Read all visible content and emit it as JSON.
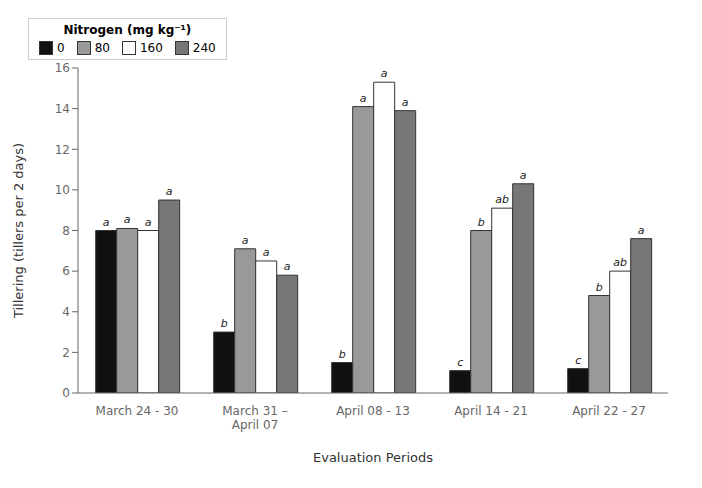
{
  "chart_data": {
    "type": "bar",
    "categories": [
      "March 24 - 30",
      "March 31 –\nApril 07",
      "April 08 - 13",
      "April 14 - 21",
      "April 22 - 27"
    ],
    "series": [
      {
        "name": "0",
        "color": "#111111",
        "values": [
          8.0,
          3.0,
          1.5,
          1.1,
          1.2
        ],
        "labels": [
          "a",
          "b",
          "b",
          "c",
          "c"
        ]
      },
      {
        "name": "80",
        "color": "#999999",
        "values": [
          8.1,
          7.1,
          14.1,
          8.0,
          4.8
        ],
        "labels": [
          "a",
          "a",
          "a",
          "b",
          "b"
        ]
      },
      {
        "name": "160",
        "color": "#ffffff",
        "values": [
          8.0,
          6.5,
          15.3,
          9.1,
          6.0
        ],
        "labels": [
          "a",
          "a",
          "a",
          "ab",
          "ab"
        ]
      },
      {
        "name": "240",
        "color": "#777777",
        "values": [
          9.5,
          5.8,
          13.9,
          10.3,
          7.6
        ],
        "labels": [
          "a",
          "a",
          "a",
          "a",
          "a"
        ]
      }
    ],
    "xlabel": "Evaluation Periods",
    "ylabel": "Tillering (tillers per 2 days)",
    "ylim": [
      0,
      16
    ],
    "yticks": [
      0,
      2,
      4,
      6,
      8,
      10,
      12,
      14,
      16
    ],
    "legend": "upper right",
    "legend_title": "Nitrogen (mg kg⁻¹)",
    "grid": false
  }
}
